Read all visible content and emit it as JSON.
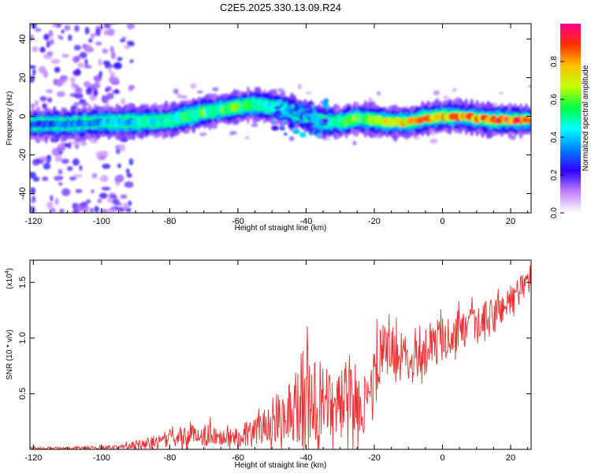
{
  "title": "C2E5.2025.330.13.09.R24",
  "chart_data": [
    {
      "type": "heatmap",
      "xlabel": "Height of straight line (km)",
      "ylabel": "Frequency (Hz)",
      "xlim": [
        -121,
        26
      ],
      "ylim": [
        -50,
        48
      ],
      "x_ticks": [
        -120,
        -100,
        -80,
        -60,
        -40,
        -20,
        0,
        20
      ],
      "x_tick_labels": [
        "-120",
        "-100",
        "-80",
        "-60",
        "-40",
        "-20",
        "0",
        "20"
      ],
      "y_ticks": [
        -40,
        -20,
        0,
        20,
        40
      ],
      "y_tick_labels": [
        "-40",
        "-20",
        "0",
        "20",
        "40"
      ],
      "ridge": {
        "x": [
          -121,
          -110,
          -100,
          -90,
          -80,
          -70,
          -60,
          -55,
          -50,
          -45,
          -40,
          -35,
          -30,
          -25,
          -20,
          -15,
          -10,
          -5,
          0,
          5,
          10,
          15,
          20,
          25
        ],
        "freq": [
          -4,
          -4,
          -3,
          -3,
          -2,
          2,
          5,
          6,
          5,
          3,
          0,
          -3,
          -3,
          -1,
          -2,
          -3,
          -3,
          -1,
          0,
          0,
          -1,
          -2,
          -2,
          -2
        ],
        "amplitude": [
          0.3,
          0.35,
          0.4,
          0.45,
          0.5,
          0.6,
          0.62,
          0.55,
          0.5,
          0.4,
          0.35,
          0.4,
          0.55,
          0.6,
          0.65,
          0.75,
          0.8,
          0.8,
          0.85,
          0.9,
          0.9,
          0.9,
          0.95,
          0.95
        ]
      },
      "colorbar": {
        "label": "Normalized spectral amplitude",
        "range": [
          0,
          1
        ],
        "ticks": [
          0.0,
          0.2,
          0.4,
          0.6,
          0.8
        ],
        "tick_labels": [
          "0.0",
          "0.2",
          "0.4",
          "0.6",
          "0.8"
        ],
        "colors": [
          "#ffffff",
          "#c080ff",
          "#3000ff",
          "#0080ff",
          "#00ffff",
          "#00ff40",
          "#c0ff00",
          "#ffc000",
          "#ff3000",
          "#ff0090"
        ]
      }
    },
    {
      "type": "line",
      "xlabel": "Height of straight line (km)",
      "ylabel": "SNR (10 * v/v)",
      "y_multiplier": "(x10",
      "y_multiplier_exp": "4",
      "y_multiplier_close": ")",
      "xlim": [
        -121,
        26
      ],
      "ylim": [
        0,
        1.7
      ],
      "x_ticks": [
        -120,
        -100,
        -80,
        -60,
        -40,
        -20,
        0,
        20
      ],
      "x_tick_labels": [
        "-120",
        "-100",
        "-80",
        "-60",
        "-40",
        "-20",
        "0",
        "20"
      ],
      "y_ticks": [
        0.5,
        1.0,
        1.5
      ],
      "y_tick_labels": [
        "0.5",
        "1.0",
        "1.5"
      ],
      "color": "#ee3030",
      "envelope": {
        "x": [
          -121,
          -110,
          -100,
          -95,
          -90,
          -85,
          -80,
          -75,
          -70,
          -65,
          -60,
          -55,
          -50,
          -45,
          -42,
          -40,
          -38,
          -35,
          -30,
          -25,
          -22,
          -20,
          -18,
          -15,
          -10,
          -5,
          0,
          5,
          10,
          15,
          20,
          26
        ],
        "mean": [
          0.01,
          0.01,
          0.015,
          0.02,
          0.04,
          0.06,
          0.1,
          0.12,
          0.13,
          0.12,
          0.12,
          0.16,
          0.25,
          0.35,
          0.45,
          0.48,
          0.42,
          0.38,
          0.42,
          0.45,
          0.4,
          0.62,
          0.85,
          0.9,
          0.82,
          0.88,
          1.0,
          1.05,
          1.1,
          1.2,
          1.35,
          1.55
        ],
        "spread": [
          0.01,
          0.01,
          0.015,
          0.02,
          0.04,
          0.06,
          0.08,
          0.1,
          0.1,
          0.1,
          0.1,
          0.12,
          0.2,
          0.28,
          0.45,
          0.5,
          0.4,
          0.35,
          0.32,
          0.32,
          0.25,
          0.3,
          0.3,
          0.2,
          0.2,
          0.2,
          0.2,
          0.18,
          0.18,
          0.18,
          0.15,
          0.12
        ]
      }
    }
  ]
}
